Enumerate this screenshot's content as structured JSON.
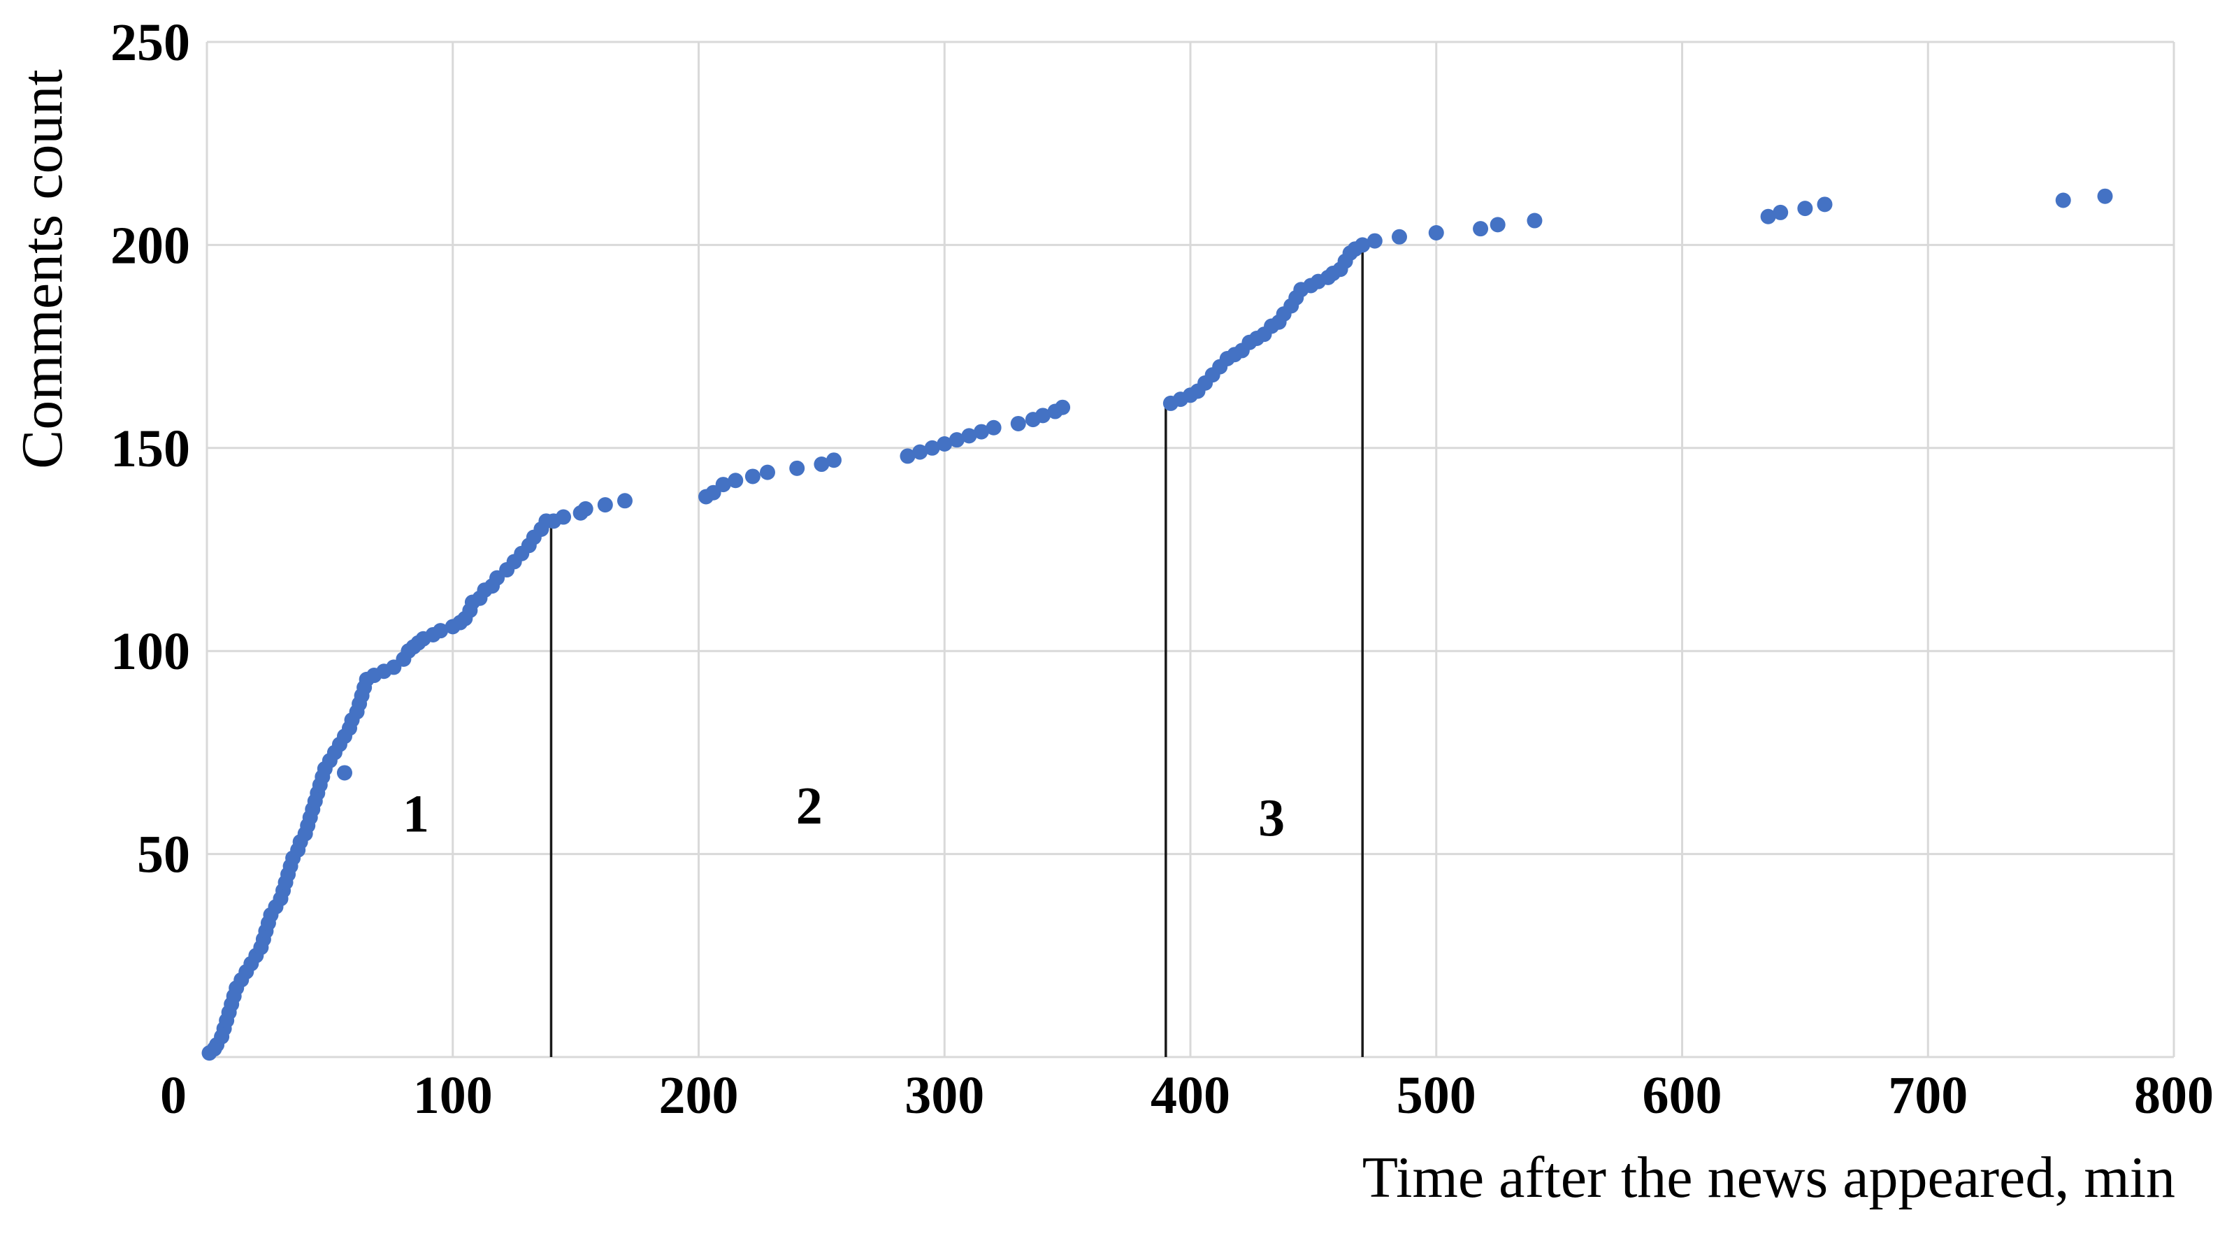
{
  "chart_data": {
    "type": "scatter",
    "title": "",
    "xlabel": "Time after the news appeared, min",
    "ylabel": "Comments count",
    "xlim": [
      0,
      800
    ],
    "ylim": [
      0,
      250
    ],
    "x_ticks": [
      "0",
      "100",
      "200",
      "300",
      "400",
      "500",
      "600",
      "700",
      "800"
    ],
    "y_ticks": [
      "50",
      "100",
      "150",
      "200",
      "250"
    ],
    "grid": true,
    "legend": "none",
    "marker_color": "#4472c4",
    "segment_boundaries": [
      140,
      390,
      470
    ],
    "phase_labels": [
      {
        "text": "1",
        "x": 85,
        "y": 60
      },
      {
        "text": "2",
        "x": 245,
        "y": 62
      },
      {
        "text": "3",
        "x": 433,
        "y": 59
      }
    ],
    "series": [
      {
        "points": [
          [
            1,
            1
          ],
          [
            3,
            2
          ],
          [
            4,
            3
          ],
          [
            6,
            5
          ],
          [
            7,
            7
          ],
          [
            8,
            9
          ],
          [
            9,
            11
          ],
          [
            10,
            13
          ],
          [
            11,
            15
          ],
          [
            12,
            17
          ],
          [
            14,
            19
          ],
          [
            16,
            21
          ],
          [
            18,
            23
          ],
          [
            20,
            25
          ],
          [
            22,
            27
          ],
          [
            23,
            29
          ],
          [
            24,
            31
          ],
          [
            25,
            33
          ],
          [
            26,
            35
          ],
          [
            28,
            37
          ],
          [
            30,
            39
          ],
          [
            31,
            41
          ],
          [
            32,
            43
          ],
          [
            33,
            45
          ],
          [
            34,
            47
          ],
          [
            35,
            49
          ],
          [
            37,
            51
          ],
          [
            38,
            53
          ],
          [
            40,
            55
          ],
          [
            41,
            57
          ],
          [
            42,
            59
          ],
          [
            43,
            61
          ],
          [
            44,
            63
          ],
          [
            45,
            65
          ],
          [
            46,
            67
          ],
          [
            47,
            69
          ],
          [
            48,
            71
          ],
          [
            50,
            73
          ],
          [
            52,
            75
          ],
          [
            54,
            77
          ],
          [
            56,
            79
          ],
          [
            58,
            81
          ],
          [
            59,
            83
          ],
          [
            61,
            85
          ],
          [
            62,
            87
          ],
          [
            63,
            89
          ],
          [
            64,
            91
          ],
          [
            65,
            93
          ],
          [
            68,
            94
          ],
          [
            72,
            95
          ],
          [
            76,
            96
          ],
          [
            80,
            98
          ],
          [
            82,
            100
          ],
          [
            84,
            101
          ],
          [
            86,
            102
          ],
          [
            88,
            103
          ],
          [
            92,
            104
          ],
          [
            95,
            105
          ],
          [
            100,
            106
          ],
          [
            103,
            107
          ],
          [
            105,
            108
          ],
          [
            107,
            110
          ],
          [
            108,
            112
          ],
          [
            111,
            113
          ],
          [
            113,
            115
          ],
          [
            116,
            116
          ],
          [
            118,
            118
          ],
          [
            122,
            120
          ],
          [
            125,
            122
          ],
          [
            128,
            124
          ],
          [
            131,
            126
          ],
          [
            133,
            128
          ],
          [
            136,
            130
          ],
          [
            138,
            132
          ],
          [
            141,
            132
          ],
          [
            145,
            133
          ],
          [
            152,
            134
          ],
          [
            154,
            135
          ],
          [
            162,
            136
          ],
          [
            170,
            137
          ],
          [
            203,
            138
          ],
          [
            206,
            139
          ],
          [
            210,
            141
          ],
          [
            215,
            142
          ],
          [
            222,
            143
          ],
          [
            228,
            144
          ],
          [
            240,
            145
          ],
          [
            250,
            146
          ],
          [
            255,
            147
          ],
          [
            285,
            148
          ],
          [
            290,
            149
          ],
          [
            295,
            150
          ],
          [
            300,
            151
          ],
          [
            305,
            152
          ],
          [
            310,
            153
          ],
          [
            315,
            154
          ],
          [
            320,
            155
          ],
          [
            330,
            156
          ],
          [
            336,
            157
          ],
          [
            340,
            158
          ],
          [
            345,
            159
          ],
          [
            348,
            160
          ],
          [
            392,
            161
          ],
          [
            396,
            162
          ],
          [
            400,
            163
          ],
          [
            403,
            164
          ],
          [
            406,
            166
          ],
          [
            409,
            168
          ],
          [
            412,
            170
          ],
          [
            415,
            172
          ],
          [
            418,
            173
          ],
          [
            421,
            174
          ],
          [
            424,
            176
          ],
          [
            427,
            177
          ],
          [
            430,
            178
          ],
          [
            433,
            180
          ],
          [
            436,
            181
          ],
          [
            438,
            183
          ],
          [
            441,
            185
          ],
          [
            443,
            187
          ],
          [
            445,
            189
          ],
          [
            449,
            190
          ],
          [
            452,
            191
          ],
          [
            456,
            192
          ],
          [
            458,
            193
          ],
          [
            461,
            194
          ],
          [
            463,
            196
          ],
          [
            465,
            198
          ],
          [
            467,
            199
          ],
          [
            470,
            200
          ],
          [
            475,
            201
          ],
          [
            485,
            202
          ],
          [
            500,
            203
          ],
          [
            518,
            204
          ],
          [
            525,
            205
          ],
          [
            540,
            206
          ],
          [
            635,
            207
          ],
          [
            640,
            208
          ],
          [
            650,
            209
          ],
          [
            658,
            210
          ],
          [
            755,
            211
          ],
          [
            772,
            212
          ],
          [
            56,
            70
          ]
        ]
      }
    ]
  }
}
